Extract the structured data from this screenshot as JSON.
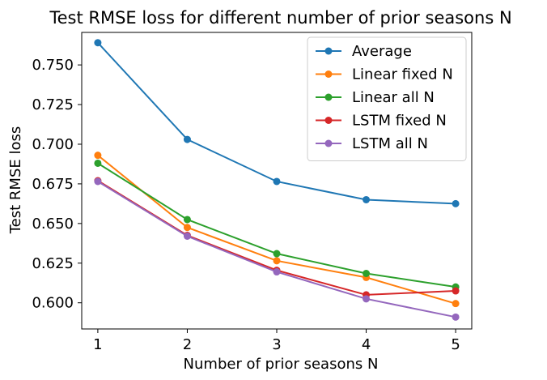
{
  "chart_data": {
    "type": "line",
    "title": "Test RMSE loss for different number of prior seasons N",
    "xlabel": "Number of prior seasons N",
    "ylabel": "Test RMSE loss",
    "x": [
      1,
      2,
      3,
      4,
      5
    ],
    "x_ticks": [
      "1",
      "2",
      "3",
      "4",
      "5"
    ],
    "y_ticks": [
      0.6,
      0.625,
      0.65,
      0.675,
      0.7,
      0.725,
      0.75
    ],
    "y_tick_labels": [
      "0.600",
      "0.625",
      "0.650",
      "0.675",
      "0.700",
      "0.725",
      "0.750"
    ],
    "xlim": [
      0.82,
      5.18
    ],
    "ylim": [
      0.5835,
      0.7705
    ],
    "grid": false,
    "legend_position": "top-right",
    "series": [
      {
        "name": "Average",
        "color": "#1f77b4",
        "values": [
          0.764,
          0.703,
          0.6765,
          0.665,
          0.6625
        ]
      },
      {
        "name": "Linear fixed N",
        "color": "#ff7f0e",
        "values": [
          0.693,
          0.6475,
          0.6265,
          0.616,
          0.5995
        ]
      },
      {
        "name": "Linear all N",
        "color": "#2ca02c",
        "values": [
          0.688,
          0.6525,
          0.631,
          0.6185,
          0.61
        ]
      },
      {
        "name": "LSTM fixed N",
        "color": "#d62728",
        "values": [
          0.677,
          0.6425,
          0.6205,
          0.605,
          0.6075
        ]
      },
      {
        "name": "LSTM all N",
        "color": "#9467bd",
        "values": [
          0.6765,
          0.642,
          0.6195,
          0.6025,
          0.591
        ]
      }
    ]
  }
}
